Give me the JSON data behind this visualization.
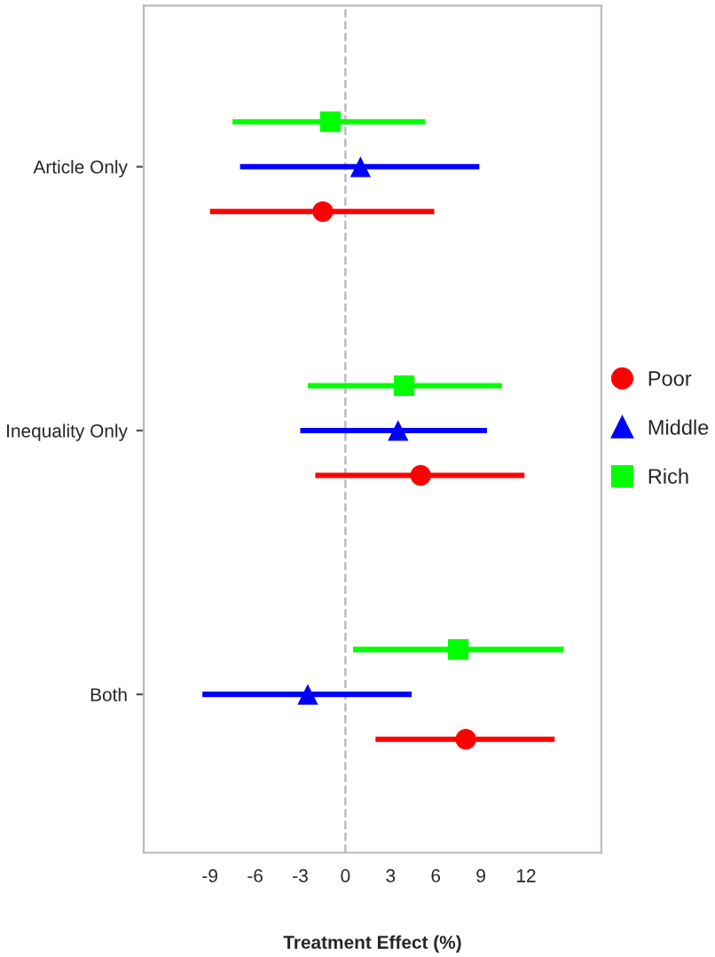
{
  "chart_data": {
    "type": "scatter",
    "orientation": "horizontal",
    "xlabel": "Treatment Effect (%)",
    "categories": [
      "Article Only",
      "Inequality Only",
      "Both"
    ],
    "xlim": [
      -13.4,
      17.0
    ],
    "xticks": [
      -9,
      -6,
      -3,
      0,
      3,
      6,
      9,
      12
    ],
    "grid": false,
    "legend": "right",
    "ref_lines": [
      {
        "axis": "x",
        "value": 0,
        "color": "#bbbbbb",
        "line_style": "dashed"
      }
    ],
    "series": [
      {
        "name": "Poor",
        "color": "#ff0000",
        "marker": "circle",
        "values": [
          -1.5,
          5.0,
          8.0
        ],
        "errors": [
          [
            -9.0,
            5.9
          ],
          [
            -2.0,
            11.9
          ],
          [
            2.0,
            13.9
          ]
        ]
      },
      {
        "name": "Middle",
        "color": "#0000ff",
        "marker": "triangle",
        "values": [
          1.0,
          3.5,
          -2.5
        ],
        "errors": [
          [
            -7.0,
            8.9
          ],
          [
            -3.0,
            9.4
          ],
          [
            -9.5,
            4.4
          ]
        ]
      },
      {
        "name": "Rich",
        "color": "#00ff00",
        "marker": "square",
        "values": [
          -1.0,
          3.9,
          7.5
        ],
        "errors": [
          [
            -7.5,
            5.3
          ],
          [
            -2.5,
            10.4
          ],
          [
            0.5,
            14.5
          ]
        ]
      }
    ]
  }
}
